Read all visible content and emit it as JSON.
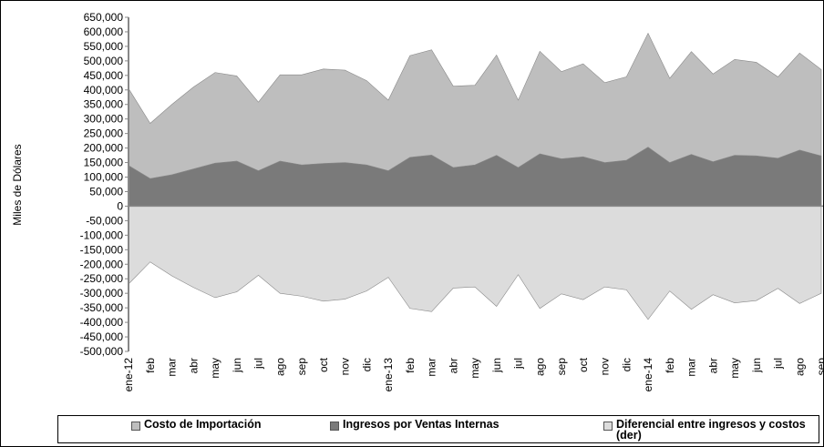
{
  "chart_data": {
    "type": "area",
    "y_label": "Miles de Dólares",
    "categories": [
      "ene-12",
      "feb",
      "mar",
      "abr",
      "may",
      "jun",
      "jul",
      "ago",
      "sep",
      "oct",
      "nov",
      "dic",
      "ene-13",
      "feb",
      "mar",
      "abr",
      "may",
      "jun",
      "jul",
      "ago",
      "sep",
      "oct",
      "nov",
      "dic",
      "ene-14",
      "feb",
      "mar",
      "abr",
      "may",
      "jun",
      "jul",
      "ago",
      "sep"
    ],
    "series": [
      {
        "name": "Costo de Importación",
        "color": "#bebebe",
        "values": [
          405000,
          285000,
          350000,
          410000,
          460000,
          448000,
          358000,
          452000,
          452000,
          472000,
          468000,
          432000,
          365000,
          518000,
          538000,
          413000,
          416000,
          520000,
          365000,
          533000,
          463000,
          490000,
          425000,
          445000,
          595000,
          440000,
          532000,
          455000,
          505000,
          495000,
          445000,
          527000,
          470000
        ]
      },
      {
        "name": "Ingresos por Ventas Internas",
        "color": "#7a7a7a",
        "values": [
          140000,
          95000,
          108000,
          128000,
          148000,
          155000,
          122000,
          155000,
          142000,
          147000,
          150000,
          142000,
          122000,
          168000,
          176000,
          133000,
          142000,
          175000,
          133000,
          180000,
          163000,
          170000,
          150000,
          158000,
          203000,
          150000,
          178000,
          153000,
          175000,
          173000,
          165000,
          193000,
          173000
        ]
      },
      {
        "name": "Diferencial entre ingresos y costos (der)",
        "color": "#dcdcdc",
        "values": [
          -268000,
          -192000,
          -240000,
          -280000,
          -315000,
          -295000,
          -238000,
          -300000,
          -310000,
          -327000,
          -320000,
          -292000,
          -245000,
          -352000,
          -363000,
          -282000,
          -278000,
          -345000,
          -236000,
          -352000,
          -302000,
          -322000,
          -278000,
          -288000,
          -390000,
          -292000,
          -355000,
          -305000,
          -333000,
          -325000,
          -283000,
          -335000,
          -300000
        ]
      }
    ],
    "ylim": [
      -500000,
      650000
    ],
    "yticks": [
      {
        "value": -500000,
        "label": "-500,000"
      },
      {
        "value": -450000,
        "label": "-450,000"
      },
      {
        "value": -400000,
        "label": "-400,000"
      },
      {
        "value": -350000,
        "label": "-350,000"
      },
      {
        "value": -300000,
        "label": "-300,000"
      },
      {
        "value": -250000,
        "label": "-250,000"
      },
      {
        "value": -200000,
        "label": "-200,000"
      },
      {
        "value": -150000,
        "label": "-150,000"
      },
      {
        "value": -100000,
        "label": "-100,000"
      },
      {
        "value": -50000,
        "label": "-50,000"
      },
      0,
      {
        "value": 50000,
        "label": "50,000"
      },
      {
        "value": 100000,
        "label": "100,000"
      },
      {
        "value": 150000,
        "label": "150,000"
      },
      {
        "value": 200000,
        "label": "200,000"
      },
      {
        "value": 250000,
        "label": "250,000"
      },
      {
        "value": 300000,
        "label": "300,000"
      },
      {
        "value": 350000,
        "label": "350,000"
      },
      {
        "value": 400000,
        "label": "400,000"
      },
      {
        "value": 450000,
        "label": "450,000"
      },
      {
        "value": 500000,
        "label": "500,000"
      },
      {
        "value": 550000,
        "label": "550,000"
      },
      {
        "value": 600000,
        "label": "600,000"
      },
      {
        "value": 650000,
        "label": "650,000"
      }
    ],
    "legend": "bottom"
  }
}
